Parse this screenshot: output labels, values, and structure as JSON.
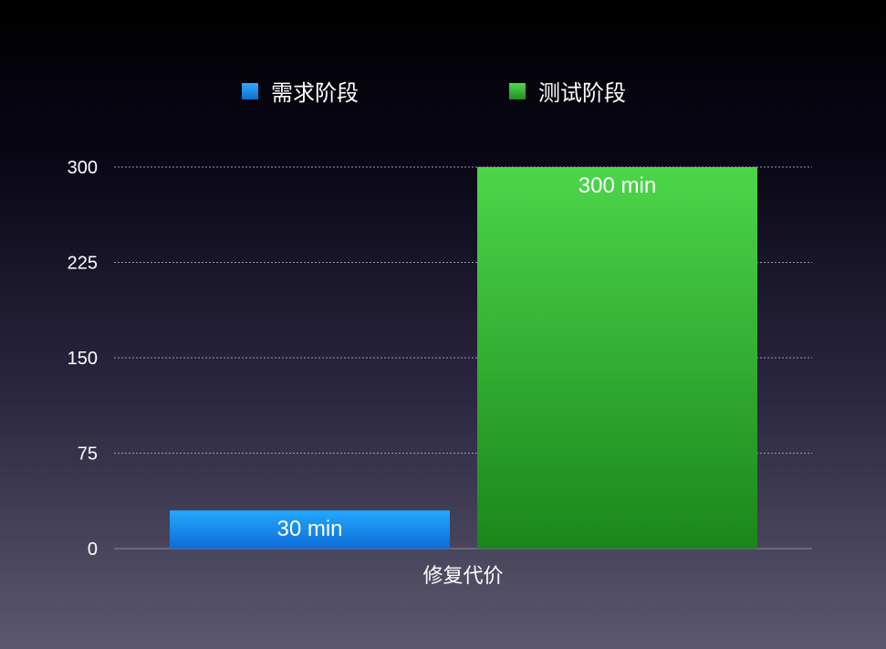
{
  "chart_data": {
    "type": "bar",
    "categories": [
      "修复代价"
    ],
    "series": [
      {
        "name": "需求阶段",
        "values": [
          30
        ],
        "value_label": "30 min",
        "color": "#1a8fe8"
      },
      {
        "name": "测试阶段",
        "values": [
          300
        ],
        "value_label": "300 min",
        "color": "#33b833"
      }
    ],
    "ylim": [
      0,
      300
    ],
    "yticks": [
      0,
      75,
      150,
      225,
      300
    ],
    "grid": true,
    "legend_position": "top-center"
  }
}
